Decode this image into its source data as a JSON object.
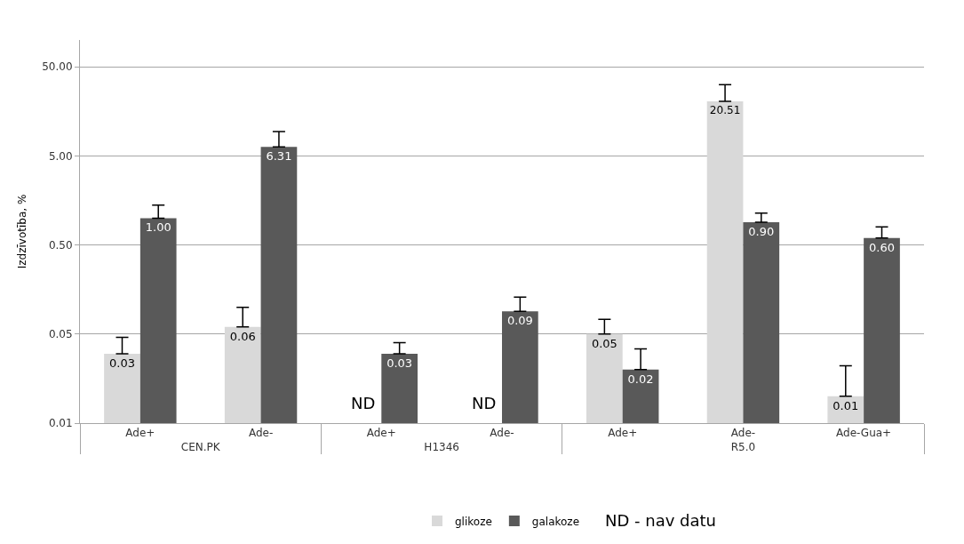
{
  "chart_data": {
    "type": "bar",
    "ylabel": "Izdzīvotība, %",
    "categories": [
      [
        "CEN.PK",
        "Ade+"
      ],
      [
        null,
        "Ade-"
      ],
      [
        "H1346",
        "Ade+"
      ],
      [
        null,
        "Ade-"
      ],
      [
        "R5.0",
        "Ade+"
      ],
      [
        null,
        "Ade-"
      ],
      [
        null,
        "Ade-Gua+"
      ]
    ],
    "series": [
      {
        "name": "glikoze",
        "color": "#d9d9d9",
        "values": [
          0.03,
          0.06,
          null,
          null,
          0.05,
          20.51,
          0.01
        ],
        "value_labels": [
          "0.03",
          "0.06",
          null,
          null,
          "0.05",
          "20.51",
          "0.01"
        ],
        "errors": [
          [
            0.03,
            0.046
          ],
          [
            0.06,
            0.1
          ],
          null,
          null,
          [
            0.05,
            0.073
          ],
          [
            20.51,
            31.6
          ],
          [
            0.01,
            0.022
          ]
        ]
      },
      {
        "name": "galakoze",
        "color": "#595959",
        "values": [
          1.0,
          6.31,
          0.03,
          0.09,
          0.02,
          0.9,
          0.6
        ],
        "value_labels": [
          "1.00",
          "6.31",
          "0.03",
          "0.09",
          "0.02",
          "0.90",
          "0.60"
        ],
        "errors": [
          [
            1.0,
            1.4
          ],
          [
            6.31,
            9.4
          ],
          [
            0.03,
            0.04
          ],
          [
            0.09,
            0.13
          ],
          [
            0.02,
            0.034
          ],
          [
            0.9,
            1.14
          ],
          [
            0.6,
            0.8
          ]
        ]
      }
    ],
    "log": "y",
    "ylim": [
      0.005,
      100
    ],
    "yticks": [
      {
        "value": 0.005,
        "label": "0.01"
      },
      0.05,
      {
        "value": 0.5,
        "label": "0.50"
      },
      {
        "value": 5,
        "label": "5.00"
      },
      {
        "value": 50,
        "label": "50.00"
      }
    ],
    "grid": "y",
    "legend": "bottom",
    "annotations": [
      "ND",
      "ND",
      "ND - nav datu"
    ]
  }
}
